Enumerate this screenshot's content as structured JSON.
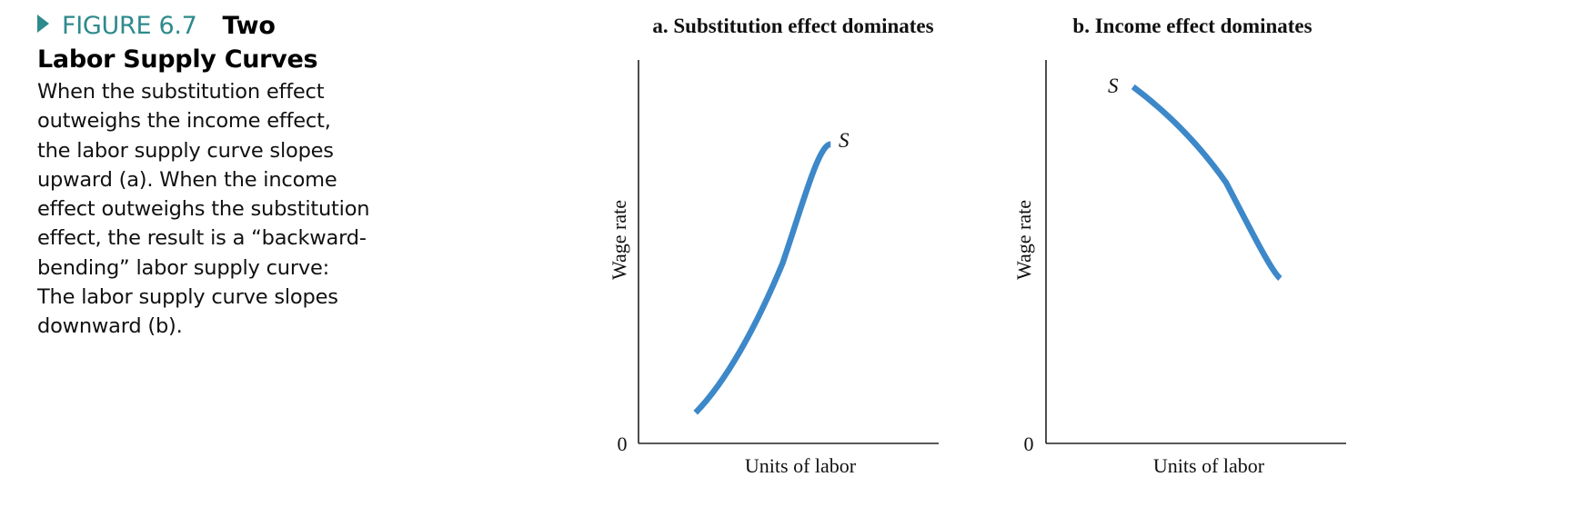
{
  "figure": {
    "label": "FIGURE 6.7",
    "title_first": "Two",
    "title_rest": "Labor Supply Curves",
    "body_lines": [
      "When the substitution effect",
      "outweighs the income effect,",
      "the labor supply curve slopes",
      "upward (a). When the income",
      "effect outweighs the substitution",
      "effect, the result is a “backward-",
      "bending” labor supply curve:",
      "The labor supply curve slopes",
      "downward (b)."
    ],
    "accent_color": "#2e8a8c"
  },
  "chart_data": [
    {
      "type": "line",
      "title": "a. Substitution effect dominates",
      "xlabel": "Units of labor",
      "ylabel": "Wage rate",
      "origin_label": "0",
      "xlim": [
        0,
        1
      ],
      "ylim": [
        0,
        1
      ],
      "grid": false,
      "series": [
        {
          "name": "S",
          "color": "#3d88c9",
          "x": [
            0.19,
            0.29,
            0.39,
            0.48,
            0.55,
            0.6,
            0.64
          ],
          "y": [
            0.08,
            0.16,
            0.3,
            0.47,
            0.63,
            0.78,
            0.78
          ]
        }
      ]
    },
    {
      "type": "line",
      "title": "b. Income effect dominates",
      "xlabel": "Units of labor",
      "ylabel": "Wage rate",
      "origin_label": "0",
      "xlim": [
        0,
        1
      ],
      "ylim": [
        0,
        1
      ],
      "grid": false,
      "series": [
        {
          "name": "S",
          "color": "#3d88c9",
          "x": [
            0.29,
            0.41,
            0.51,
            0.6,
            0.68,
            0.75,
            0.78
          ],
          "y": [
            0.93,
            0.86,
            0.78,
            0.68,
            0.56,
            0.45,
            0.43
          ]
        }
      ]
    }
  ]
}
